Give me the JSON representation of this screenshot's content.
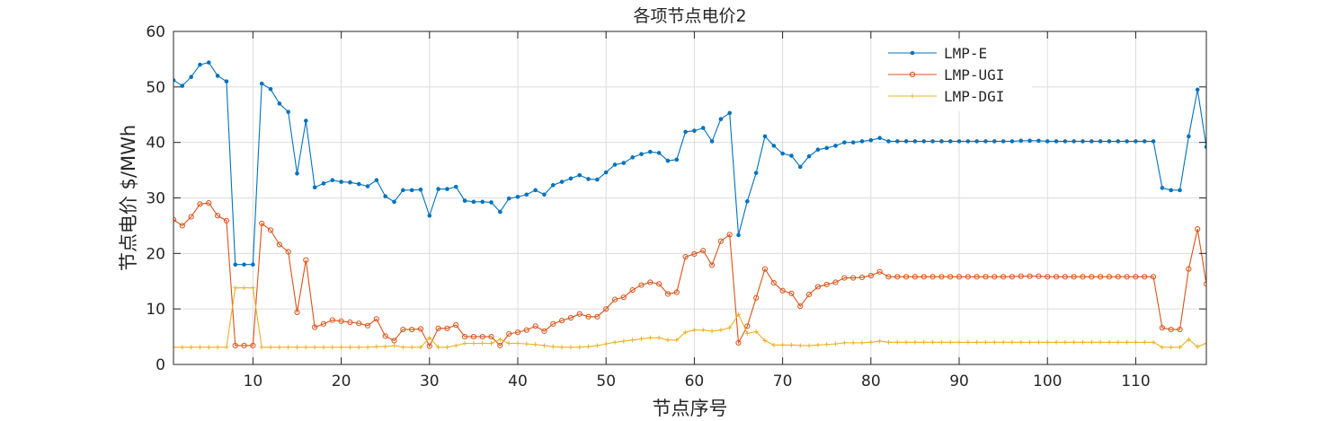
{
  "chart_data": {
    "type": "line",
    "title": "各项节点电价2",
    "xlabel": "节点序号",
    "ylabel": "节点电价 $/MWh",
    "xlim": [
      1,
      118
    ],
    "ylim": [
      0,
      60
    ],
    "x_ticks": [
      10,
      20,
      30,
      40,
      50,
      60,
      70,
      80,
      90,
      100,
      110
    ],
    "y_ticks": [
      0,
      10,
      20,
      30,
      40,
      50,
      60
    ],
    "grid": true,
    "legend_position": "top-right",
    "series": [
      {
        "name": "LMP-E",
        "color": "#0072BD",
        "marker": "dot",
        "values": [
          51.2,
          50.2,
          51.8,
          54.0,
          54.4,
          52.0,
          51.0,
          18.0,
          18.0,
          18.0,
          50.6,
          49.6,
          47.0,
          45.5,
          34.4,
          43.9,
          31.9,
          32.6,
          33.2,
          32.9,
          32.8,
          32.5,
          32.1,
          33.2,
          30.3,
          29.3,
          31.4,
          31.4,
          31.5,
          26.8,
          31.6,
          31.6,
          32.0,
          29.5,
          29.3,
          29.3,
          29.2,
          27.5,
          29.9,
          30.2,
          30.6,
          31.4,
          30.6,
          32.3,
          32.9,
          33.5,
          34.1,
          33.4,
          33.3,
          34.6,
          36.0,
          36.3,
          37.3,
          37.9,
          38.3,
          38.1,
          36.7,
          36.9,
          41.9,
          42.1,
          42.6,
          40.2,
          44.2,
          45.3,
          23.3,
          29.4,
          34.5,
          41.1,
          39.4,
          38.0,
          37.6,
          35.6,
          37.5,
          38.7,
          39.0,
          39.4,
          40.0,
          40.0,
          40.2,
          40.4,
          40.8,
          40.2,
          40.2,
          40.2,
          40.2,
          40.2,
          40.2,
          40.2,
          40.2,
          40.2,
          40.2,
          40.2,
          40.2,
          40.2,
          40.2,
          40.2,
          40.3,
          40.3,
          40.3,
          40.2,
          40.2,
          40.2,
          40.2,
          40.2,
          40.2,
          40.2,
          40.2,
          40.2,
          40.2,
          40.2,
          40.2,
          40.2,
          31.8,
          31.4,
          31.4,
          41.1,
          49.5,
          39.2
        ]
      },
      {
        "name": "LMP-UGI",
        "color": "#D95319",
        "marker": "circle",
        "values": [
          26.1,
          25.0,
          26.6,
          28.9,
          29.1,
          26.8,
          25.9,
          3.4,
          3.4,
          3.4,
          25.4,
          24.2,
          21.6,
          20.3,
          9.4,
          18.8,
          6.7,
          7.3,
          8.0,
          7.8,
          7.6,
          7.4,
          7.0,
          8.2,
          5.1,
          4.3,
          6.3,
          6.3,
          6.4,
          3.3,
          6.5,
          6.5,
          7.1,
          5.0,
          5.0,
          5.0,
          5.0,
          3.4,
          5.5,
          5.8,
          6.2,
          6.9,
          6.0,
          7.3,
          7.9,
          8.4,
          9.1,
          8.6,
          8.6,
          10.0,
          11.7,
          12.1,
          13.4,
          14.3,
          14.8,
          14.5,
          12.7,
          13.0,
          19.4,
          19.9,
          20.5,
          17.9,
          22.2,
          23.4,
          3.9,
          6.9,
          12.0,
          17.2,
          14.7,
          13.3,
          12.8,
          10.5,
          12.6,
          14.0,
          14.4,
          14.8,
          15.6,
          15.6,
          15.7,
          16.0,
          16.7,
          15.8,
          15.8,
          15.8,
          15.8,
          15.8,
          15.8,
          15.8,
          15.8,
          15.8,
          15.8,
          15.8,
          15.8,
          15.8,
          15.8,
          15.8,
          15.9,
          15.9,
          15.9,
          15.8,
          15.8,
          15.8,
          15.8,
          15.8,
          15.8,
          15.8,
          15.8,
          15.8,
          15.8,
          15.8,
          15.8,
          15.8,
          6.6,
          6.3,
          6.3,
          17.2,
          24.4,
          14.5
        ]
      },
      {
        "name": "LMP-DGI",
        "color": "#EDB120",
        "marker": "plus",
        "values": [
          3.1,
          3.1,
          3.1,
          3.1,
          3.1,
          3.1,
          3.1,
          13.8,
          13.8,
          13.8,
          3.1,
          3.1,
          3.1,
          3.1,
          3.1,
          3.1,
          3.1,
          3.1,
          3.1,
          3.1,
          3.1,
          3.1,
          3.1,
          3.2,
          3.2,
          3.4,
          3.1,
          3.1,
          3.1,
          4.8,
          3.1,
          3.1,
          3.4,
          3.8,
          3.8,
          3.8,
          3.8,
          4.5,
          3.8,
          3.8,
          3.7,
          3.6,
          3.4,
          3.2,
          3.1,
          3.1,
          3.1,
          3.2,
          3.4,
          3.7,
          4.0,
          4.2,
          4.4,
          4.6,
          4.8,
          4.8,
          4.4,
          4.4,
          5.8,
          6.2,
          6.2,
          6.0,
          6.2,
          6.6,
          9.0,
          5.6,
          5.9,
          4.3,
          3.5,
          3.5,
          3.5,
          3.4,
          3.4,
          3.5,
          3.6,
          3.7,
          3.9,
          3.9,
          3.9,
          4.0,
          4.2,
          4.0,
          4.0,
          4.0,
          4.0,
          4.0,
          4.0,
          4.0,
          4.0,
          4.0,
          4.0,
          4.0,
          4.0,
          4.0,
          4.0,
          4.0,
          4.0,
          4.0,
          4.0,
          4.0,
          4.0,
          4.0,
          4.0,
          4.0,
          4.0,
          4.0,
          4.0,
          4.0,
          4.0,
          4.0,
          4.0,
          4.0,
          3.1,
          3.1,
          3.1,
          4.5,
          3.2,
          3.8
        ]
      }
    ]
  }
}
